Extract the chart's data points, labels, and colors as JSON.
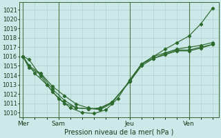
{
  "title": "Pression niveau de la mer( hPa )",
  "bg_color": "#cce8e8",
  "grid_color": "#aacccc",
  "line_color": "#2d6a2d",
  "x_ticks_pos": [
    0,
    3,
    9,
    14
  ],
  "x_tick_labels": [
    "Mer",
    "Sam",
    "Jeu",
    "Ven"
  ],
  "x_vlines": [
    0,
    3,
    9,
    14
  ],
  "ylim": [
    1009.5,
    1021.8
  ],
  "yticks": [
    1010,
    1011,
    1012,
    1013,
    1014,
    1015,
    1016,
    1017,
    1018,
    1019,
    1020,
    1021
  ],
  "xlim": [
    -0.3,
    16.5
  ],
  "series_x": [
    [
      0,
      0.5,
      1.5,
      2.5,
      3.5,
      4.5,
      5.5,
      6.5,
      7.5,
      9,
      10,
      11,
      12,
      13,
      14,
      15,
      16
    ],
    [
      0,
      0.5,
      1.5,
      2.5,
      3.5,
      4.5,
      5.5,
      6.5,
      7.5,
      9,
      10,
      11,
      12,
      13,
      14,
      15,
      16
    ],
    [
      0,
      0.5,
      1.5,
      2.5,
      3.5,
      4.5,
      5.5,
      6.5,
      7.5,
      9,
      10,
      11,
      12,
      13,
      14,
      15,
      16
    ],
    [
      0,
      1.0,
      2.0,
      3.0,
      4.0,
      5.0,
      6.0,
      7.0,
      8.0,
      9,
      10,
      11,
      12,
      13,
      14,
      15,
      16
    ]
  ],
  "series_y": [
    [
      1016.0,
      1015.7,
      1013.9,
      1012.2,
      1011.0,
      1010.5,
      1010.4,
      1010.5,
      1011.1,
      1013.3,
      1015.0,
      1015.8,
      1016.2,
      1016.6,
      1016.6,
      1016.9,
      1017.3
    ],
    [
      1016.0,
      1014.8,
      1014.1,
      1012.5,
      1011.3,
      1010.5,
      1010.4,
      1010.4,
      1011.1,
      1013.3,
      1015.2,
      1015.8,
      1016.3,
      1016.7,
      1016.7,
      1017.0,
      1017.3
    ],
    [
      1016.0,
      1015.0,
      1014.2,
      1012.8,
      1011.8,
      1010.9,
      1010.5,
      1010.3,
      1011.0,
      1013.4,
      1015.2,
      1016.0,
      1016.4,
      1016.8,
      1017.0,
      1017.2,
      1017.5
    ],
    [
      1016.0,
      1014.2,
      1013.0,
      1011.5,
      1010.5,
      1010.0,
      1009.9,
      1010.3,
      1011.5,
      1013.5,
      1015.2,
      1016.0,
      1016.8,
      1017.5,
      1018.2,
      1019.5,
      1021.2
    ]
  ]
}
